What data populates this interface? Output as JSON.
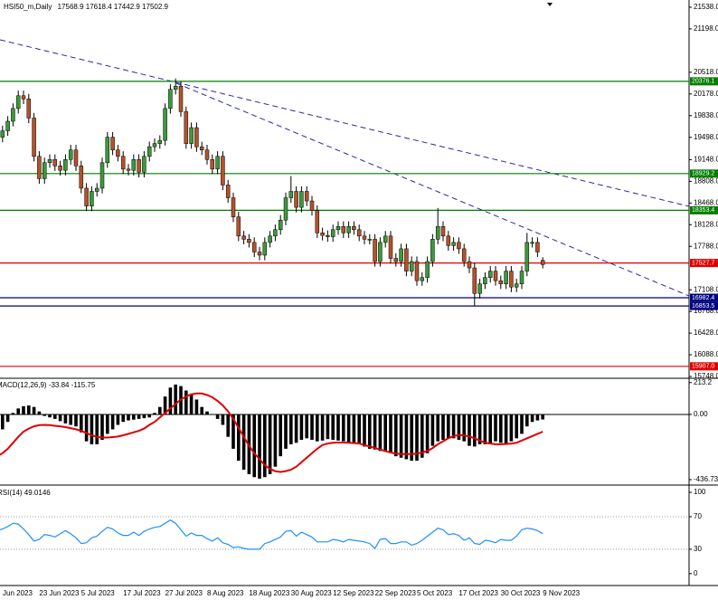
{
  "chart_data": [
    {
      "type": "candlestick",
      "title": "HSI50_m,Daily",
      "categories": [
        "Jun 2023",
        null,
        null,
        null,
        null,
        null,
        null,
        null,
        "23 Jun 2023",
        null,
        null,
        null,
        null,
        null,
        null,
        null,
        "5 Jul 2023",
        null,
        null,
        null,
        null,
        null,
        null,
        null,
        "17 Jul 2023",
        null,
        null,
        null,
        null,
        null,
        null,
        null,
        "27 Jul 2023",
        null,
        null,
        null,
        null,
        null,
        null,
        null,
        "8 Aug 2023",
        null,
        null,
        null,
        null,
        null,
        null,
        null,
        "18 Aug 2023",
        null,
        null,
        null,
        null,
        null,
        null,
        null,
        "30 Aug 2023",
        null,
        null,
        null,
        null,
        null,
        null,
        null,
        "12 Sep 2023",
        null,
        null,
        null,
        null,
        null,
        null,
        null,
        "22 Sep 2023",
        null,
        null,
        null,
        null,
        null,
        null,
        null,
        "5 Oct 2023",
        null,
        null,
        null,
        null,
        null,
        null,
        null,
        "17 Oct 2023",
        null,
        null,
        null,
        null,
        null,
        null,
        null,
        "30 Oct 2023",
        null,
        null,
        null,
        null,
        null,
        null,
        null,
        "9 Nov 2023"
      ],
      "open": [
        19400,
        19500,
        19600,
        19750,
        19950,
        20150,
        20100,
        19800,
        19200,
        18850,
        19100,
        19150,
        19050,
        18980,
        19150,
        19300,
        19050,
        18700,
        18420,
        18650,
        18700,
        19100,
        19500,
        19300,
        19200,
        19000,
        18980,
        19150,
        18950,
        19200,
        19350,
        19400,
        19450,
        19950,
        20250,
        20300,
        19900,
        19400,
        19650,
        19350,
        19300,
        19150,
        19000,
        19200,
        18750,
        18550,
        18250,
        17950,
        17900,
        17850,
        17700,
        17650,
        17850,
        17950,
        18050,
        18200,
        18550,
        18650,
        18400,
        18650,
        18500,
        18350,
        18000,
        17960,
        17940,
        18050,
        18100,
        18000,
        18100,
        18050,
        17950,
        17900,
        17900,
        17550,
        17850,
        17950,
        17600,
        17550,
        17750,
        17400,
        17550,
        17250,
        17300,
        17550,
        17900,
        18100,
        17950,
        17800,
        17850,
        17750,
        17550,
        17450,
        17050,
        17200,
        17300,
        17400,
        17250,
        17200,
        17400,
        17150,
        17200,
        17400,
        17850,
        17850,
        17568.9
      ],
      "high": [
        19580,
        19680,
        19830,
        20030,
        20230,
        20230,
        20180,
        19880,
        19280,
        19180,
        19230,
        19230,
        19130,
        19230,
        19380,
        19380,
        19130,
        18780,
        18730,
        18780,
        19180,
        19580,
        19580,
        19380,
        19280,
        19080,
        19230,
        19230,
        19280,
        19430,
        19480,
        19530,
        20030,
        20330,
        20420,
        20380,
        19980,
        19730,
        19730,
        19430,
        19380,
        19230,
        19280,
        19280,
        18830,
        18630,
        18330,
        18030,
        17980,
        17930,
        17780,
        17930,
        18030,
        18130,
        18280,
        18630,
        18890,
        18730,
        18730,
        18730,
        18580,
        18430,
        18080,
        18040,
        18130,
        18180,
        18180,
        18180,
        18180,
        18130,
        18030,
        17980,
        17980,
        17930,
        18030,
        18030,
        17680,
        17830,
        17830,
        17630,
        17630,
        17380,
        17630,
        17980,
        18390,
        18180,
        18030,
        17930,
        17930,
        17830,
        17630,
        17530,
        17280,
        17380,
        17480,
        17480,
        17330,
        17480,
        17480,
        17280,
        17480,
        18000,
        17930,
        17930,
        17618.4
      ],
      "low": [
        19320,
        19420,
        19520,
        19670,
        19870,
        20020,
        19720,
        19120,
        18770,
        18770,
        19020,
        18970,
        18900,
        18900,
        19070,
        18970,
        18620,
        18340,
        18340,
        18570,
        18620,
        19020,
        19220,
        19120,
        18920,
        18900,
        18900,
        18870,
        18870,
        19120,
        19270,
        19320,
        19370,
        19870,
        20170,
        19820,
        19320,
        19320,
        19270,
        19220,
        19070,
        18920,
        18920,
        18670,
        18470,
        18170,
        17870,
        17820,
        17770,
        17620,
        17570,
        17570,
        17770,
        17870,
        17970,
        18120,
        18470,
        18320,
        18320,
        18420,
        18270,
        17920,
        17880,
        17860,
        17860,
        17970,
        17920,
        17920,
        17970,
        17870,
        17820,
        17820,
        17470,
        17470,
        17770,
        17520,
        17470,
        17470,
        17320,
        17320,
        17170,
        17170,
        17220,
        17470,
        17820,
        17870,
        17720,
        17720,
        17670,
        17470,
        17370,
        16860,
        16970,
        17120,
        17220,
        17170,
        17120,
        17120,
        17070,
        17070,
        17120,
        17320,
        17770,
        17620,
        17442.9
      ],
      "close": [
        19500,
        19600,
        19750,
        19950,
        20150,
        20100,
        19800,
        19200,
        18850,
        19100,
        19150,
        19050,
        18980,
        19150,
        19300,
        19050,
        18700,
        18420,
        18650,
        18700,
        19100,
        19500,
        19300,
        19200,
        19000,
        18980,
        19150,
        18950,
        19200,
        19350,
        19400,
        19450,
        19950,
        20250,
        20300,
        19900,
        19400,
        19650,
        19350,
        19300,
        19150,
        19000,
        19200,
        18750,
        18550,
        18250,
        17950,
        17900,
        17850,
        17700,
        17650,
        17850,
        17950,
        18050,
        18200,
        18550,
        18650,
        18400,
        18650,
        18500,
        18350,
        18000,
        17960,
        17940,
        18050,
        18100,
        18000,
        18100,
        18050,
        17950,
        17900,
        17900,
        17550,
        17850,
        17950,
        17600,
        17550,
        17750,
        17400,
        17550,
        17250,
        17300,
        17550,
        17900,
        18100,
        17950,
        17800,
        17850,
        17750,
        17550,
        17450,
        17050,
        17200,
        17300,
        17400,
        17250,
        17200,
        17400,
        17150,
        17200,
        17400,
        17850,
        17850,
        17700,
        17502.9
      ],
      "up_color": "#3a9a3a",
      "down_color": "#b4532a",
      "wick_color": "#000000",
      "ylim": [
        15734,
        21651
      ],
      "yticks": [
        {
          "value": 21538,
          "label": "21538.0"
        },
        {
          "value": 21198,
          "label": "21198.0"
        },
        {
          "value": 20518,
          "label": "20518.0"
        },
        {
          "value": 20178,
          "label": "20178.0"
        },
        {
          "value": 19838,
          "label": "19838.0"
        },
        {
          "value": 19498,
          "label": "19498.0"
        },
        {
          "value": 19148,
          "label": "19148.0"
        },
        {
          "value": 18808,
          "label": "18808.0"
        },
        {
          "value": 18468,
          "label": "18468.0"
        },
        {
          "value": 18128,
          "label": "18128.0"
        },
        {
          "value": 17788,
          "label": "17788.0"
        },
        {
          "value": 17108,
          "label": "17108.0"
        },
        {
          "value": 16768,
          "label": "16768.0"
        },
        {
          "value": 16428,
          "label": "16428.0"
        },
        {
          "value": 16088,
          "label": "16088.0"
        },
        {
          "value": 15748,
          "label": "15748.0"
        }
      ],
      "levels": [
        {
          "value": 20376.1,
          "color": "#007f00"
        },
        {
          "value": 18929.2,
          "color": "#007f00"
        },
        {
          "value": 18353.4,
          "color": "#007f00"
        },
        {
          "value": 17527.7,
          "color": "#e00000"
        },
        {
          "value": 16982.4,
          "color": "#000080"
        },
        {
          "value": 16853.5,
          "color": "#000080"
        },
        {
          "value": 15907,
          "label": "15907.0",
          "color": "#e00000"
        }
      ]
    },
    {
      "type": "macd",
      "title": "MACD(12,26,9)",
      "histogram": [
        -120,
        -100,
        -50,
        10,
        40,
        55,
        60,
        50,
        20,
        -10,
        -20,
        -30,
        -45,
        -60,
        -70,
        -80,
        -120,
        -180,
        -200,
        -200,
        -170,
        -130,
        -100,
        -70,
        -50,
        -40,
        -35,
        -30,
        -25,
        -20,
        10,
        50,
        120,
        180,
        200,
        190,
        160,
        135,
        100,
        50,
        20,
        0,
        -30,
        -70,
        -150,
        -230,
        -310,
        -370,
        -400,
        -420,
        -430,
        -420,
        -400,
        -350,
        -280,
        -230,
        -200,
        -190,
        -170,
        -160,
        -170,
        -180,
        -175,
        -165,
        -170,
        -175,
        -180,
        -185,
        -190,
        -200,
        -215,
        -230,
        -235,
        -245,
        -250,
        -255,
        -280,
        -290,
        -300,
        -310,
        -310,
        -290,
        -260,
        -210,
        -180,
        -170,
        -160,
        -160,
        -170,
        -180,
        -210,
        -215,
        -200,
        -200,
        -200,
        -180,
        -190,
        -200,
        -180,
        -160,
        -130,
        -80,
        -50,
        -40,
        -33.84
      ],
      "signal": [
        -280,
        -260,
        -230,
        -190,
        -150,
        -115,
        -95,
        -80,
        -72,
        -70,
        -72,
        -76,
        -80,
        -85,
        -92,
        -100,
        -110,
        -125,
        -140,
        -150,
        -155,
        -155,
        -152,
        -148,
        -140,
        -130,
        -120,
        -110,
        -95,
        -70,
        -50,
        -20,
        10,
        40,
        70,
        100,
        120,
        135,
        140,
        140,
        130,
        115,
        90,
        60,
        20,
        -30,
        -90,
        -150,
        -210,
        -260,
        -300,
        -340,
        -365,
        -380,
        -385,
        -380,
        -370,
        -350,
        -320,
        -290,
        -260,
        -230,
        -205,
        -195,
        -190,
        -188,
        -188,
        -190,
        -192,
        -195,
        -205,
        -215,
        -225,
        -235,
        -245,
        -255,
        -262,
        -265,
        -266,
        -265,
        -262,
        -255,
        -245,
        -225,
        -200,
        -180,
        -160,
        -145,
        -138,
        -140,
        -148,
        -160,
        -175,
        -190,
        -195,
        -200,
        -200,
        -198,
        -195,
        -190,
        -175,
        -160,
        -145,
        -130,
        -115.75
      ],
      "histogram_color": "#000000",
      "signal_color": "#e00000",
      "ylim": [
        -467,
        230
      ],
      "yticks": [
        213.2,
        {
          "value": 0,
          "label": "0.00"
        },
        -436.73
      ]
    },
    {
      "type": "line",
      "title": "RSI(14)",
      "values": [
        53,
        55,
        58,
        62,
        61,
        55,
        48,
        40,
        42,
        48,
        47,
        45,
        49,
        53,
        49,
        44,
        37,
        38,
        44,
        46,
        52,
        57,
        55,
        50,
        47,
        47,
        51,
        47,
        52,
        55,
        57,
        58,
        62,
        66,
        62,
        54,
        46,
        50,
        47,
        47,
        43,
        40,
        44,
        38,
        36,
        32,
        33,
        31,
        30,
        30,
        30,
        37,
        39,
        42,
        45,
        52,
        53,
        46,
        51,
        48,
        45,
        39,
        39,
        39,
        42,
        41,
        39,
        42,
        41,
        40,
        39,
        37,
        31,
        42,
        43,
        37,
        37,
        39,
        39,
        35,
        37,
        41,
        46,
        51,
        56,
        54,
        48,
        49,
        47,
        41,
        44,
        37,
        36,
        41,
        40,
        38,
        42,
        41,
        41,
        46,
        54,
        56,
        55,
        53,
        49.0146
      ],
      "color": "#1e90ff",
      "ylim": [
        -14.6,
        106.7
      ],
      "yticks": [
        100,
        70,
        30,
        0
      ],
      "levels": [
        70,
        30
      ]
    }
  ]
}
